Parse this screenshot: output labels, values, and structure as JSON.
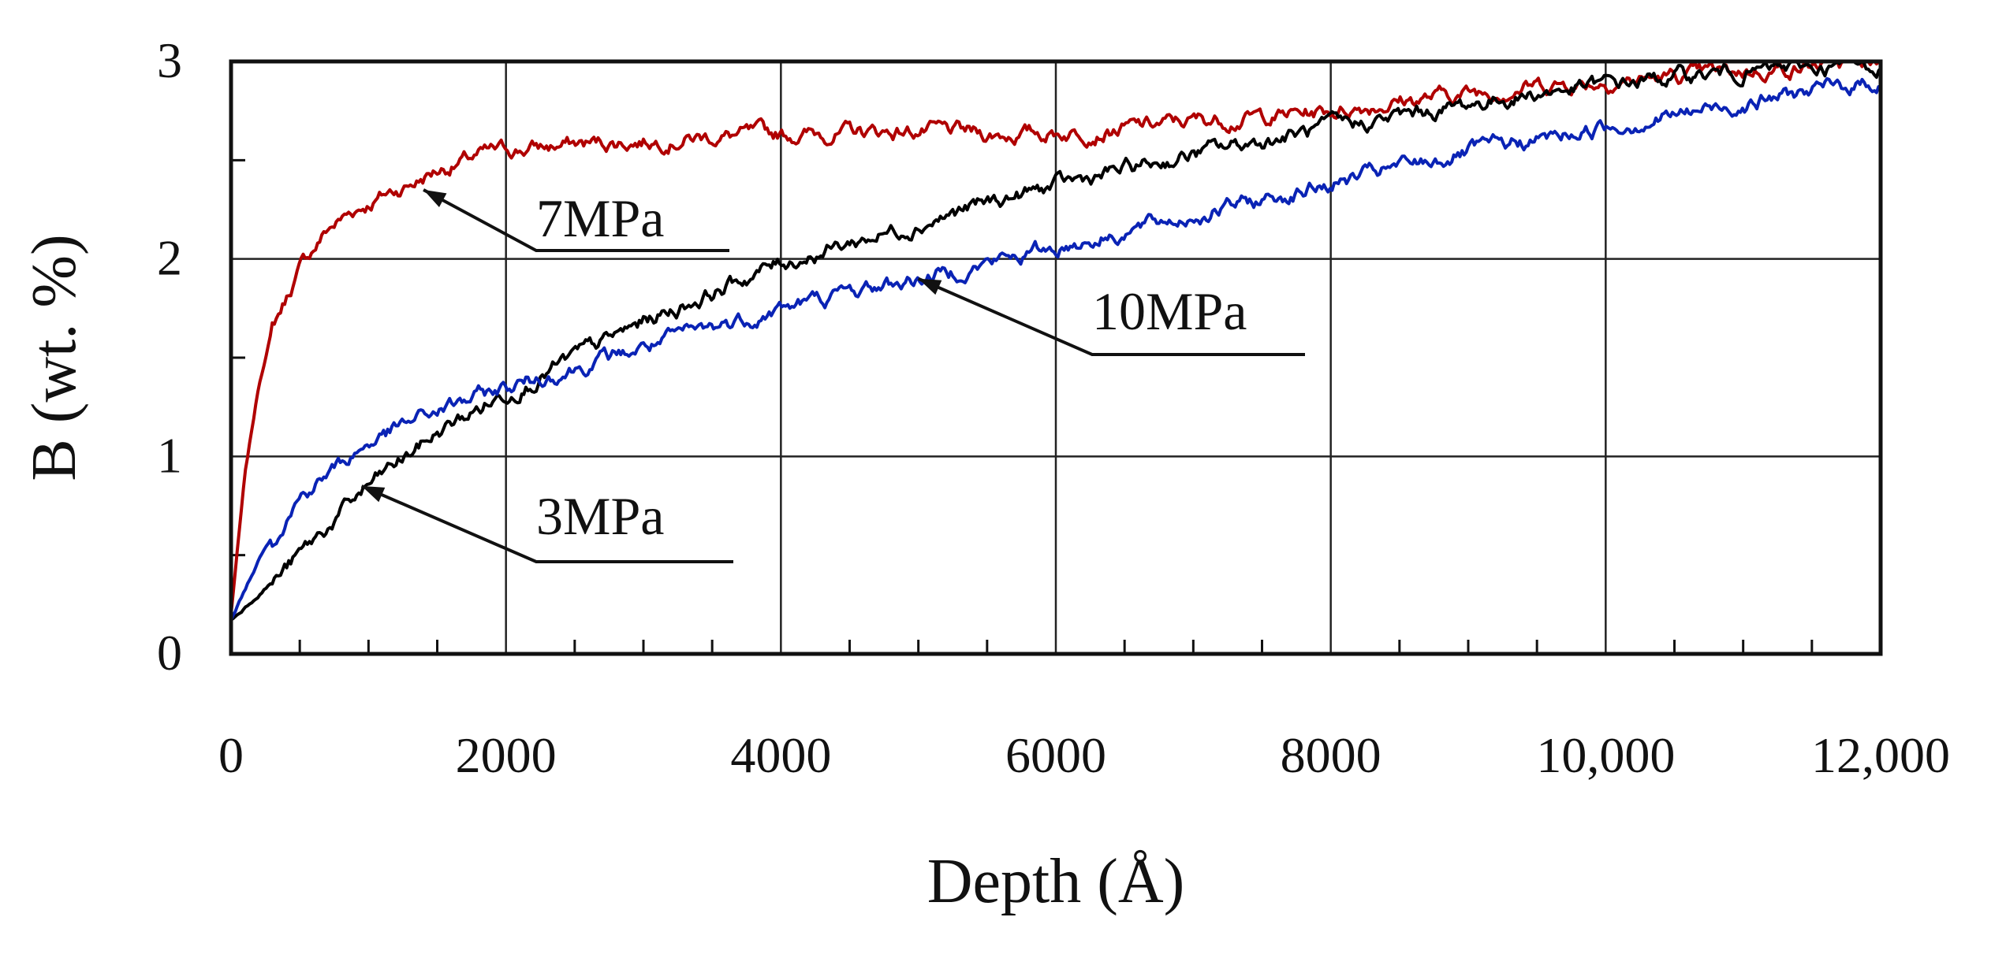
{
  "chart_data": {
    "type": "line",
    "title": "",
    "xlabel": "Depth (Å)",
    "ylabel": "B (wt. %)",
    "xlim": [
      0,
      12000
    ],
    "ylim": [
      0,
      3
    ],
    "grid": true,
    "x_ticks": [
      0,
      2000,
      4000,
      6000,
      8000,
      10000,
      12000
    ],
    "x_tick_labels": [
      "0",
      "2000",
      "4000",
      "6000",
      "8000",
      "10,000",
      "12,000"
    ],
    "y_ticks": [
      0,
      1,
      2,
      3
    ],
    "y_tick_labels": [
      "0",
      "1",
      "2",
      "3"
    ],
    "series": [
      {
        "name": "7MPa",
        "color": "#b00000",
        "x": [
          0,
          100,
          200,
          300,
          500,
          700,
          900,
          1100,
          1300,
          1500,
          1800,
          2000,
          2500,
          3000,
          3500,
          4000,
          4500,
          5000,
          5500,
          6000,
          6500,
          7000,
          7500,
          8000,
          8500,
          9000,
          9500,
          10000,
          10500,
          11000,
          11500,
          12000
        ],
        "y": [
          0.2,
          0.9,
          1.35,
          1.65,
          1.95,
          2.15,
          2.25,
          2.32,
          2.38,
          2.45,
          2.52,
          2.55,
          2.58,
          2.6,
          2.62,
          2.63,
          2.64,
          2.65,
          2.63,
          2.64,
          2.66,
          2.7,
          2.72,
          2.75,
          2.8,
          2.84,
          2.88,
          2.9,
          2.92,
          2.95,
          2.98,
          3.0
        ]
      },
      {
        "name": "3MPa",
        "color": "#000000",
        "x": [
          0,
          500,
          1000,
          1500,
          2000,
          2500,
          3000,
          3500,
          4000,
          4500,
          5000,
          5500,
          6000,
          6500,
          7000,
          7500,
          8000,
          8500,
          9000,
          9500,
          10000,
          10500,
          11000,
          11500,
          12000
        ],
        "y": [
          0.17,
          0.5,
          0.85,
          1.12,
          1.32,
          1.5,
          1.68,
          1.83,
          1.98,
          2.08,
          2.18,
          2.28,
          2.37,
          2.45,
          2.53,
          2.6,
          2.66,
          2.72,
          2.78,
          2.84,
          2.88,
          2.92,
          2.95,
          2.97,
          2.98
        ]
      },
      {
        "name": "10MPa",
        "color": "#0a23b5",
        "x": [
          0,
          250,
          500,
          1000,
          1500,
          2000,
          2500,
          3000,
          3500,
          4000,
          4500,
          5000,
          5500,
          6000,
          6500,
          7000,
          7500,
          8000,
          8500,
          9000,
          9500,
          10000,
          10500,
          11000,
          11500,
          12000
        ],
        "y": [
          0.17,
          0.55,
          0.8,
          1.07,
          1.23,
          1.35,
          1.45,
          1.55,
          1.65,
          1.75,
          1.83,
          1.9,
          1.98,
          2.06,
          2.14,
          2.22,
          2.3,
          2.38,
          2.46,
          2.54,
          2.6,
          2.67,
          2.73,
          2.79,
          2.85,
          2.9
        ]
      }
    ],
    "annotations": [
      {
        "text": "7MPa",
        "series": "7MPa",
        "point_x": 1400,
        "point_y": 2.35
      },
      {
        "text": "10MPa",
        "series": "10MPa",
        "point_x": 5000,
        "point_y": 1.9
      },
      {
        "text": "3MPa",
        "series": "3MPa",
        "point_x": 950,
        "point_y": 0.85
      }
    ]
  }
}
